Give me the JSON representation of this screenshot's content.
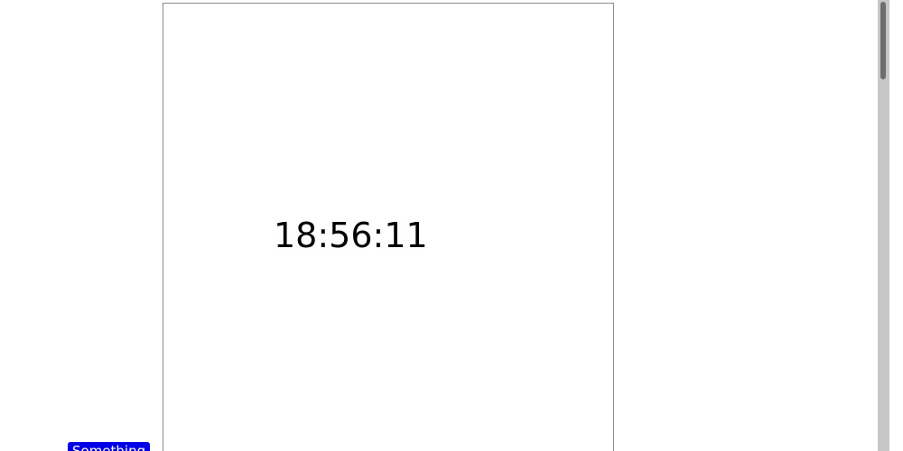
{
  "clock": {
    "time_text": "18:56:11"
  },
  "button": {
    "label": "Something"
  },
  "donut": {
    "colors": {
      "top_right": "#616f8d",
      "bottom_right": "#5f7f9f",
      "bottom_left": "#7f7fbf",
      "top_left": "#7f7fff",
      "overlay_wedge": "#ff8080",
      "overlay_overlap": "#7f3fbf"
    }
  },
  "scrollbar": {
    "track_color": "#c6c6c6",
    "thumb_color": "#6e6e6e"
  }
}
